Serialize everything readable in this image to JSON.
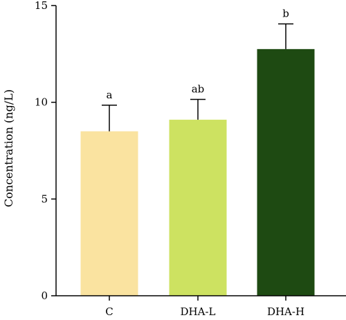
{
  "chart_data": {
    "type": "bar",
    "title": "",
    "xlabel": "",
    "ylabel": "Concentration (ng/L)",
    "ylim": [
      0,
      15
    ],
    "yticks": [
      0,
      5,
      10,
      15
    ],
    "grid": false,
    "legend": "none",
    "categories": [
      "C",
      "DHA-L",
      "DHA-H"
    ],
    "values": [
      8.5,
      9.1,
      12.75
    ],
    "error_upper": [
      1.35,
      1.05,
      1.3
    ],
    "significance_labels": [
      "a",
      "ab",
      "b"
    ],
    "bar_colors": [
      "#fae3a0",
      "#cde261",
      "#1e4a12"
    ],
    "bar_edge_color": "#000000"
  }
}
